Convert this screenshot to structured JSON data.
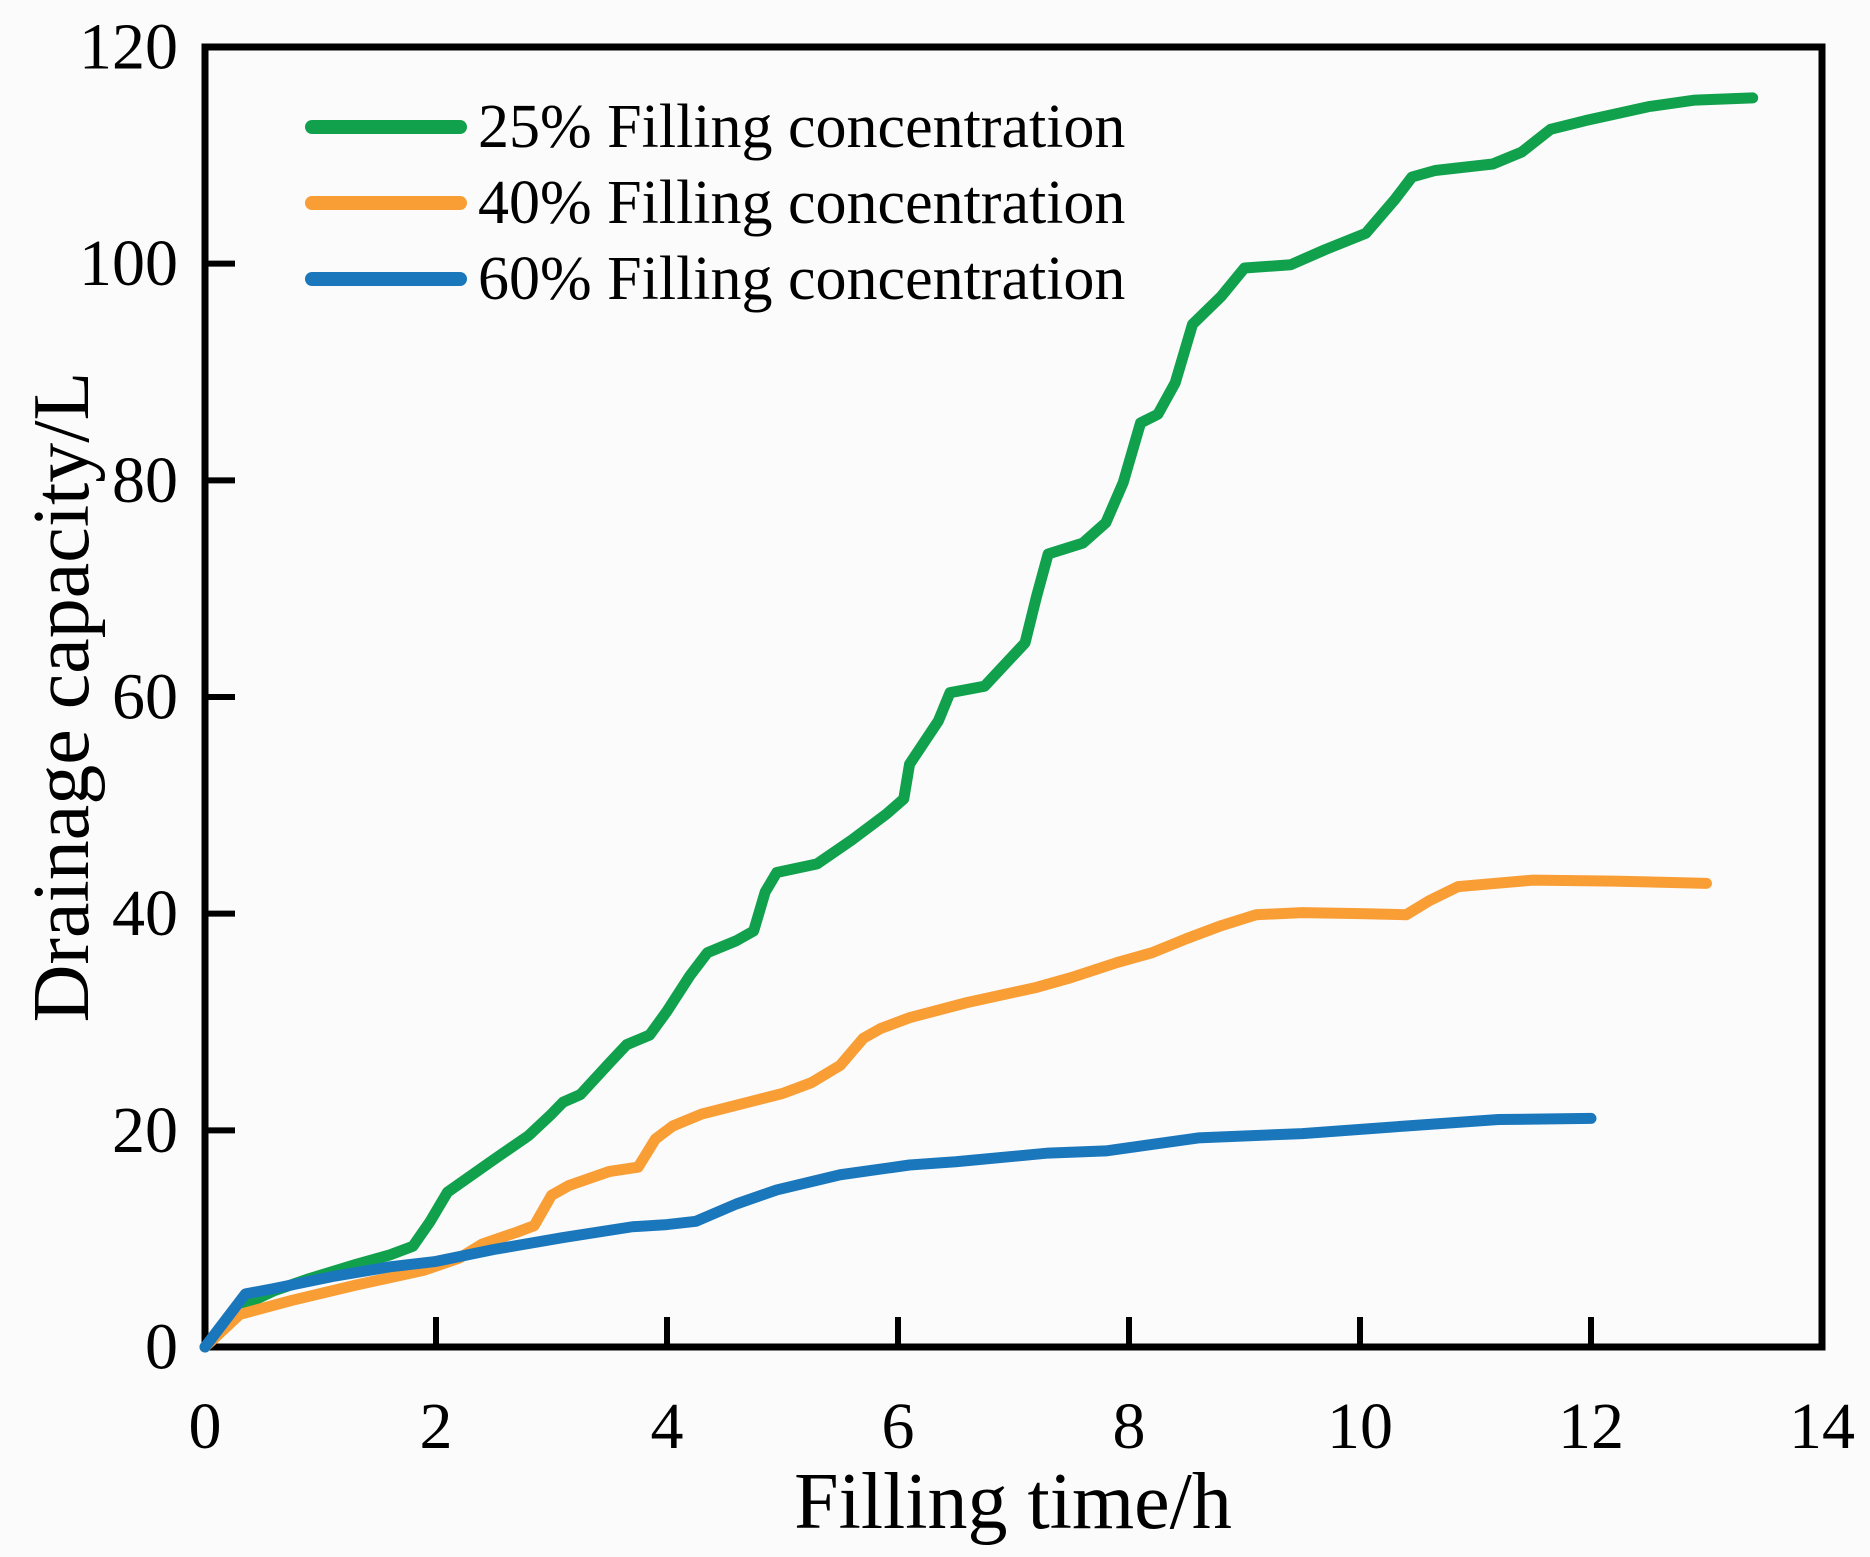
{
  "figure": {
    "background": "#fbfbfb",
    "axis_color": "#000000",
    "text_color": "#000000"
  },
  "chart_data": {
    "type": "line",
    "title": "",
    "xlabel": "Filling time/h",
    "ylabel": "Drainage capacity/L",
    "xlim": [
      0,
      14
    ],
    "ylim": [
      0,
      120
    ],
    "x_ticks": [
      0,
      2,
      4,
      6,
      8,
      10,
      12,
      14
    ],
    "y_ticks": [
      0,
      20,
      40,
      60,
      80,
      100,
      120
    ],
    "grid": false,
    "legend_position": "upper-left-inside",
    "series": [
      {
        "name": "25% Filling concentration",
        "color": "#11a14d",
        "points": [
          [
            0,
            0
          ],
          [
            0.3,
            3.7
          ],
          [
            0.6,
            5.2
          ],
          [
            0.9,
            6.3
          ],
          [
            1.3,
            7.6
          ],
          [
            1.6,
            8.5
          ],
          [
            1.8,
            9.3
          ],
          [
            1.95,
            11.6
          ],
          [
            2.1,
            14.3
          ],
          [
            2.3,
            15.8
          ],
          [
            2.5,
            17.3
          ],
          [
            2.8,
            19.5
          ],
          [
            3.0,
            21.5
          ],
          [
            3.1,
            22.6
          ],
          [
            3.25,
            23.3
          ],
          [
            3.5,
            26.2
          ],
          [
            3.65,
            27.9
          ],
          [
            3.85,
            28.8
          ],
          [
            4.0,
            31.0
          ],
          [
            4.2,
            34.3
          ],
          [
            4.35,
            36.4
          ],
          [
            4.6,
            37.5
          ],
          [
            4.75,
            38.4
          ],
          [
            4.85,
            42.0
          ],
          [
            4.95,
            43.8
          ],
          [
            5.3,
            44.6
          ],
          [
            5.6,
            46.8
          ],
          [
            5.9,
            49.2
          ],
          [
            6.05,
            50.6
          ],
          [
            6.1,
            53.8
          ],
          [
            6.35,
            57.8
          ],
          [
            6.45,
            60.4
          ],
          [
            6.75,
            61.0
          ],
          [
            7.1,
            65.0
          ],
          [
            7.2,
            69.3
          ],
          [
            7.3,
            73.2
          ],
          [
            7.6,
            74.2
          ],
          [
            7.8,
            76.1
          ],
          [
            7.95,
            79.8
          ],
          [
            8.1,
            85.3
          ],
          [
            8.25,
            86.1
          ],
          [
            8.4,
            89.0
          ],
          [
            8.55,
            94.4
          ],
          [
            8.8,
            97.0
          ],
          [
            9.0,
            99.6
          ],
          [
            9.4,
            99.9
          ],
          [
            9.7,
            101.3
          ],
          [
            10.05,
            102.8
          ],
          [
            10.3,
            105.9
          ],
          [
            10.45,
            108.0
          ],
          [
            10.65,
            108.6
          ],
          [
            11.15,
            109.2
          ],
          [
            11.4,
            110.3
          ],
          [
            11.65,
            112.4
          ],
          [
            11.95,
            113.2
          ],
          [
            12.5,
            114.5
          ],
          [
            12.9,
            115.1
          ],
          [
            13.4,
            115.3
          ]
        ]
      },
      {
        "name": "40% Filling concentration",
        "color": "#f99d35",
        "points": [
          [
            0,
            0
          ],
          [
            0.3,
            3.0
          ],
          [
            0.75,
            4.3
          ],
          [
            1.3,
            5.7
          ],
          [
            1.9,
            7.1
          ],
          [
            2.2,
            8.2
          ],
          [
            2.4,
            9.5
          ],
          [
            2.7,
            10.6
          ],
          [
            2.85,
            11.2
          ],
          [
            3.0,
            14.0
          ],
          [
            3.15,
            14.9
          ],
          [
            3.5,
            16.2
          ],
          [
            3.75,
            16.6
          ],
          [
            3.9,
            19.2
          ],
          [
            4.05,
            20.4
          ],
          [
            4.3,
            21.5
          ],
          [
            5.0,
            23.4
          ],
          [
            5.25,
            24.4
          ],
          [
            5.5,
            26.0
          ],
          [
            5.7,
            28.5
          ],
          [
            5.85,
            29.4
          ],
          [
            6.1,
            30.4
          ],
          [
            6.6,
            31.8
          ],
          [
            7.2,
            33.2
          ],
          [
            7.5,
            34.1
          ],
          [
            7.9,
            35.5
          ],
          [
            8.2,
            36.4
          ],
          [
            8.5,
            37.7
          ],
          [
            8.8,
            38.9
          ],
          [
            9.1,
            39.9
          ],
          [
            9.5,
            40.1
          ],
          [
            10.0,
            40.0
          ],
          [
            10.4,
            39.9
          ],
          [
            10.6,
            41.2
          ],
          [
            10.85,
            42.5
          ],
          [
            11.5,
            43.1
          ],
          [
            12.2,
            43.0
          ],
          [
            13.0,
            42.8
          ]
        ]
      },
      {
        "name": "60% Filling concentration",
        "color": "#1b77bc",
        "points": [
          [
            0,
            0
          ],
          [
            0.35,
            4.9
          ],
          [
            0.6,
            5.4
          ],
          [
            1.1,
            6.5
          ],
          [
            1.6,
            7.4
          ],
          [
            2.0,
            7.9
          ],
          [
            2.5,
            9.0
          ],
          [
            3.1,
            10.1
          ],
          [
            3.7,
            11.1
          ],
          [
            4.0,
            11.3
          ],
          [
            4.25,
            11.6
          ],
          [
            4.6,
            13.2
          ],
          [
            4.95,
            14.5
          ],
          [
            5.5,
            15.9
          ],
          [
            6.1,
            16.8
          ],
          [
            6.5,
            17.1
          ],
          [
            7.3,
            17.9
          ],
          [
            7.8,
            18.1
          ],
          [
            8.6,
            19.3
          ],
          [
            9.5,
            19.7
          ],
          [
            10.4,
            20.4
          ],
          [
            11.2,
            21.0
          ],
          [
            12.0,
            21.1
          ]
        ]
      }
    ]
  }
}
